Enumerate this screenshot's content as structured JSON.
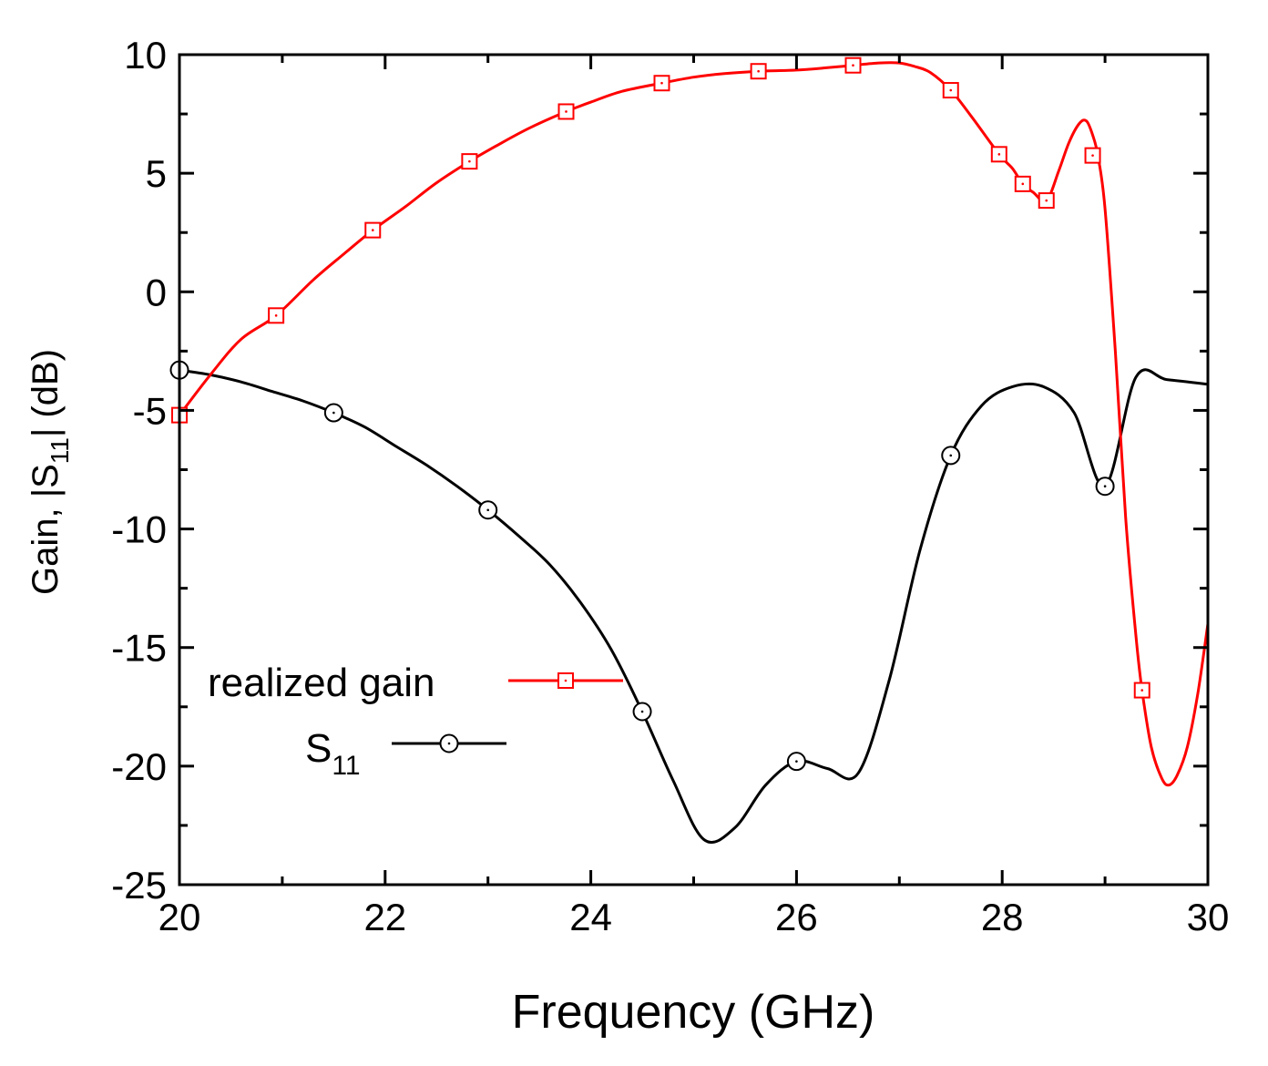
{
  "chart_data": {
    "type": "line",
    "title": "",
    "xlabel": "Frequency (GHz)",
    "ylabel_parts": {
      "pre": "Gain, |S",
      "sub": "11",
      "post": "| (dB)"
    },
    "xlim": [
      20,
      30
    ],
    "ylim": [
      -25,
      10
    ],
    "xticks": [
      20,
      22,
      24,
      26,
      28,
      30
    ],
    "xtick_labels": [
      "20",
      "22",
      "24",
      "26",
      "28",
      "30"
    ],
    "yticks": [
      10,
      5,
      0,
      -5,
      -10,
      -15,
      -20,
      -25
    ],
    "ytick_labels": [
      "10",
      "5",
      "0",
      "-5",
      "-10",
      "-15",
      "-20",
      "-25"
    ],
    "series": [
      {
        "id": "gain",
        "name": "realized gain",
        "color": "#ff0000",
        "marker": "square",
        "x": [
          20.0,
          20.3,
          20.6,
          20.94,
          21.3,
          21.6,
          21.88,
          22.2,
          22.5,
          22.82,
          23.1,
          23.4,
          23.76,
          24.0,
          24.3,
          24.69,
          25.0,
          25.3,
          25.63,
          26.0,
          26.3,
          26.55,
          26.8,
          27.0,
          27.15,
          27.3,
          27.5,
          27.7,
          27.97,
          28.1,
          28.2,
          28.3,
          28.43,
          28.55,
          28.65,
          28.75,
          28.82,
          28.88,
          28.93,
          29.0,
          29.1,
          29.2,
          29.3,
          29.36,
          29.45,
          29.55,
          29.62,
          29.7,
          29.8,
          29.9,
          30.0
        ],
        "y": [
          -5.2,
          -3.5,
          -2.0,
          -1.0,
          0.5,
          1.6,
          2.6,
          3.6,
          4.6,
          5.5,
          6.2,
          6.9,
          7.6,
          8.0,
          8.45,
          8.8,
          9.05,
          9.2,
          9.3,
          9.35,
          9.45,
          9.55,
          9.65,
          9.65,
          9.5,
          9.25,
          8.5,
          7.4,
          5.8,
          5.2,
          4.55,
          4.2,
          3.85,
          5.1,
          6.3,
          7.1,
          7.2,
          6.6,
          5.75,
          3.5,
          -2.5,
          -9.5,
          -14.5,
          -16.8,
          -19.2,
          -20.5,
          -20.8,
          -20.4,
          -19.2,
          -17.0,
          -14.0
        ],
        "marker_x": [
          20.0,
          20.94,
          21.88,
          22.82,
          23.76,
          24.69,
          25.63,
          26.55,
          27.5,
          27.97,
          28.2,
          28.43,
          28.88,
          29.36
        ],
        "marker_y": [
          -5.2,
          -1.0,
          2.6,
          5.5,
          7.6,
          8.8,
          9.3,
          9.55,
          8.5,
          5.8,
          4.55,
          3.85,
          5.75,
          -16.8
        ]
      },
      {
        "id": "s11",
        "name": "S11",
        "color": "#000000",
        "marker": "circle",
        "x": [
          20.0,
          20.3,
          20.6,
          20.9,
          21.2,
          21.5,
          21.8,
          22.1,
          22.4,
          22.7,
          23.0,
          23.3,
          23.6,
          23.9,
          24.2,
          24.5,
          24.8,
          25.1,
          25.4,
          25.7,
          26.0,
          26.3,
          26.6,
          26.9,
          27.2,
          27.5,
          27.8,
          28.1,
          28.4,
          28.7,
          29.0,
          29.3,
          29.6,
          30.0
        ],
        "y": [
          -3.3,
          -3.5,
          -3.8,
          -4.2,
          -4.6,
          -5.1,
          -5.7,
          -6.5,
          -7.3,
          -8.2,
          -9.2,
          -10.3,
          -11.5,
          -13.1,
          -15.1,
          -17.7,
          -20.6,
          -23.1,
          -22.6,
          -20.8,
          -19.8,
          -20.1,
          -20.3,
          -16.4,
          -10.9,
          -6.9,
          -4.8,
          -4.0,
          -4.0,
          -5.1,
          -8.2,
          -3.6,
          -3.7,
          -3.9
        ],
        "marker_x": [
          20.0,
          21.5,
          23.0,
          24.5,
          26.0,
          27.5,
          29.0
        ],
        "marker_y": [
          -3.3,
          -5.1,
          -9.2,
          -17.7,
          -19.8,
          -6.9,
          -8.2
        ]
      }
    ],
    "legend": {
      "placement": "bottom-left",
      "entries": [
        {
          "label": "realized gain",
          "series": "gain"
        },
        {
          "label_main": "S",
          "label_sub": "11",
          "series": "s11"
        }
      ]
    },
    "grid": false
  }
}
